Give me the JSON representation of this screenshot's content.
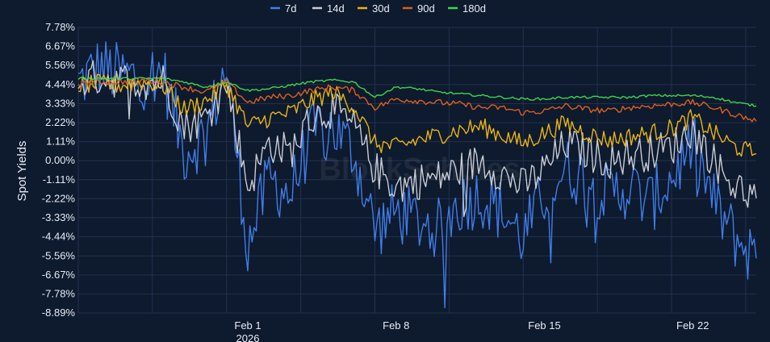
{
  "chart_data": {
    "type": "line",
    "title": "",
    "xlabel": "",
    "ylabel": "Spot Yields",
    "y_unit": "%",
    "ylim": [
      -8.89,
      7.78
    ],
    "yticks": [
      7.78,
      6.67,
      5.56,
      4.44,
      3.33,
      2.22,
      1.11,
      0.0,
      -1.11,
      -2.22,
      -3.33,
      -4.44,
      -5.56,
      -6.67,
      -7.78,
      -8.89
    ],
    "yticklabels": [
      "7.78%",
      "6.67%",
      "5.56%",
      "4.44%",
      "3.33%",
      "2.22%",
      "1.11%",
      "0.00%",
      "-1.11%",
      "-2.22%",
      "-3.33%",
      "-4.44%",
      "-5.56%",
      "-6.67%",
      "-7.78%",
      "-8.89%"
    ],
    "xlim": [
      "2026-01-24",
      "2026-02-25"
    ],
    "xticks": [
      "2026-02-01",
      "2026-02-08",
      "2026-02-15",
      "2026-02-22"
    ],
    "xticklabels": [
      "Feb 1",
      "Feb 8",
      "Feb 15",
      "Feb 22"
    ],
    "xticklabels_second_line": [
      "2026",
      "",
      "",
      ""
    ],
    "grid": true,
    "legend_position": "top",
    "watermark": "BlockScholes",
    "series": [
      {
        "name": "7d",
        "color": "#3f7de8",
        "x": [
          "2026-01-24",
          "2026-01-25",
          "2026-01-26",
          "2026-01-27",
          "2026-01-28",
          "2026-01-29",
          "2026-01-30",
          "2026-01-31",
          "2026-02-01",
          "2026-02-02",
          "2026-02-03",
          "2026-02-04",
          "2026-02-05",
          "2026-02-06",
          "2026-02-07",
          "2026-02-08",
          "2026-02-09",
          "2026-02-10",
          "2026-02-11",
          "2026-02-12",
          "2026-02-13",
          "2026-02-14",
          "2026-02-15",
          "2026-02-16",
          "2026-02-17",
          "2026-02-18",
          "2026-02-19",
          "2026-02-20",
          "2026-02-21",
          "2026-02-22",
          "2026-02-23",
          "2026-02-24",
          "2026-02-25"
        ],
        "values": [
          4.5,
          5.5,
          5.0,
          4.8,
          5.2,
          0.5,
          1.5,
          5.5,
          -5.0,
          -1.0,
          -2.0,
          1.5,
          2.0,
          0.5,
          -4.0,
          -3.0,
          -3.5,
          -4.0,
          -2.5,
          -2.0,
          -3.0,
          -4.5,
          -2.0,
          -0.5,
          -1.0,
          -2.0,
          -1.5,
          -2.5,
          -1.0,
          1.0,
          -2.5,
          -4.5,
          -5.7
        ]
      },
      {
        "name": "14d",
        "color": "#c8ccd4",
        "x": [
          "2026-01-24",
          "2026-01-25",
          "2026-01-26",
          "2026-01-27",
          "2026-01-28",
          "2026-01-29",
          "2026-01-30",
          "2026-01-31",
          "2026-02-01",
          "2026-02-02",
          "2026-02-03",
          "2026-02-04",
          "2026-02-05",
          "2026-02-06",
          "2026-02-07",
          "2026-02-08",
          "2026-02-09",
          "2026-02-10",
          "2026-02-11",
          "2026-02-12",
          "2026-02-13",
          "2026-02-14",
          "2026-02-15",
          "2026-02-16",
          "2026-02-17",
          "2026-02-18",
          "2026-02-19",
          "2026-02-20",
          "2026-02-21",
          "2026-02-22",
          "2026-02-23",
          "2026-02-24",
          "2026-02-25"
        ],
        "values": [
          4.6,
          4.9,
          4.7,
          4.6,
          4.7,
          2.0,
          2.5,
          4.5,
          -1.5,
          1.0,
          0.5,
          2.5,
          3.0,
          2.0,
          -0.5,
          -1.5,
          -1.2,
          -1.0,
          -0.5,
          0.0,
          -0.8,
          -1.5,
          -0.5,
          1.0,
          0.5,
          0.0,
          0.3,
          0.5,
          0.8,
          1.8,
          0.0,
          -1.5,
          -2.2
        ]
      },
      {
        "name": "30d",
        "color": "#e8b414",
        "x": [
          "2026-01-24",
          "2026-01-25",
          "2026-01-26",
          "2026-01-27",
          "2026-01-28",
          "2026-01-29",
          "2026-01-30",
          "2026-01-31",
          "2026-02-01",
          "2026-02-02",
          "2026-02-03",
          "2026-02-04",
          "2026-02-05",
          "2026-02-06",
          "2026-02-07",
          "2026-02-08",
          "2026-02-09",
          "2026-02-10",
          "2026-02-11",
          "2026-02-12",
          "2026-02-13",
          "2026-02-14",
          "2026-02-15",
          "2026-02-16",
          "2026-02-17",
          "2026-02-18",
          "2026-02-19",
          "2026-02-20",
          "2026-02-21",
          "2026-02-22",
          "2026-02-23",
          "2026-02-24",
          "2026-02-25"
        ],
        "values": [
          4.4,
          4.5,
          4.4,
          4.6,
          4.4,
          3.0,
          3.5,
          4.5,
          2.0,
          2.5,
          2.8,
          3.5,
          4.0,
          3.2,
          1.0,
          0.8,
          1.2,
          1.5,
          1.8,
          2.0,
          1.5,
          1.0,
          1.6,
          2.2,
          1.6,
          1.2,
          1.4,
          1.6,
          1.9,
          2.5,
          1.6,
          0.8,
          0.4
        ]
      },
      {
        "name": "90d",
        "color": "#d9601e",
        "x": [
          "2026-01-24",
          "2026-01-25",
          "2026-01-26",
          "2026-01-27",
          "2026-01-28",
          "2026-01-29",
          "2026-01-30",
          "2026-01-31",
          "2026-02-01",
          "2026-02-02",
          "2026-02-03",
          "2026-02-04",
          "2026-02-05",
          "2026-02-06",
          "2026-02-07",
          "2026-02-08",
          "2026-02-09",
          "2026-02-10",
          "2026-02-11",
          "2026-02-12",
          "2026-02-13",
          "2026-02-14",
          "2026-02-15",
          "2026-02-16",
          "2026-02-17",
          "2026-02-18",
          "2026-02-19",
          "2026-02-20",
          "2026-02-21",
          "2026-02-22",
          "2026-02-23",
          "2026-02-24",
          "2026-02-25"
        ],
        "values": [
          4.5,
          4.6,
          4.6,
          4.7,
          4.6,
          4.3,
          4.0,
          4.6,
          3.4,
          3.7,
          3.8,
          4.1,
          4.3,
          4.1,
          3.1,
          3.6,
          3.5,
          3.4,
          3.3,
          3.1,
          3.1,
          2.8,
          2.9,
          3.2,
          3.0,
          2.9,
          3.1,
          3.2,
          3.3,
          3.4,
          3.1,
          2.7,
          2.3
        ]
      },
      {
        "name": "180d",
        "color": "#3cd64a",
        "x": [
          "2026-01-24",
          "2026-01-25",
          "2026-01-26",
          "2026-01-27",
          "2026-01-28",
          "2026-01-29",
          "2026-01-30",
          "2026-01-31",
          "2026-02-01",
          "2026-02-02",
          "2026-02-03",
          "2026-02-04",
          "2026-02-05",
          "2026-02-06",
          "2026-02-07",
          "2026-02-08",
          "2026-02-09",
          "2026-02-10",
          "2026-02-11",
          "2026-02-12",
          "2026-02-13",
          "2026-02-14",
          "2026-02-15",
          "2026-02-16",
          "2026-02-17",
          "2026-02-18",
          "2026-02-19",
          "2026-02-20",
          "2026-02-21",
          "2026-02-22",
          "2026-02-23",
          "2026-02-24",
          "2026-02-25"
        ],
        "values": [
          4.8,
          4.8,
          4.8,
          4.8,
          4.8,
          4.6,
          4.3,
          4.6,
          4.1,
          4.2,
          4.4,
          4.6,
          4.7,
          4.6,
          3.7,
          4.3,
          4.2,
          4.0,
          3.9,
          3.8,
          3.7,
          3.6,
          3.6,
          3.7,
          3.7,
          3.7,
          3.7,
          3.8,
          3.8,
          3.8,
          3.7,
          3.4,
          3.2
        ]
      }
    ]
  }
}
